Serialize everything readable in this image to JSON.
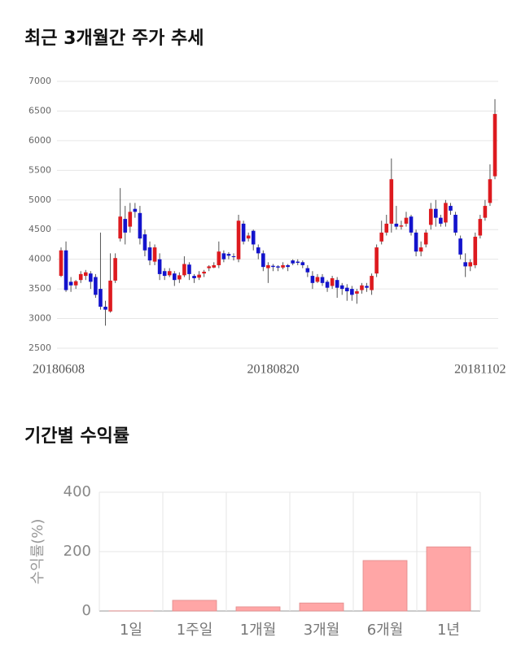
{
  "chart_data": [
    {
      "type": "candlestick",
      "title": "최근 3개월간 주가 추세",
      "categories": [
        "20180608",
        null,
        null,
        null,
        null,
        null,
        null,
        null,
        null,
        null,
        null,
        null,
        null,
        null,
        null,
        null,
        null,
        null,
        null,
        null,
        null,
        null,
        null,
        null,
        null,
        null,
        null,
        null,
        null,
        null,
        null,
        null,
        null,
        null,
        null,
        null,
        null,
        null,
        null,
        null,
        null,
        null,
        null,
        "20180820",
        null,
        null,
        null,
        null,
        null,
        null,
        null,
        null,
        null,
        null,
        null,
        null,
        null,
        null,
        null,
        null,
        null,
        null,
        null,
        null,
        null,
        null,
        null,
        null,
        null,
        null,
        null,
        null,
        null,
        null,
        null,
        null,
        null,
        null,
        null,
        null,
        null,
        null,
        null,
        null,
        null,
        "20181102",
        null,
        null,
        null
      ],
      "open": [
        3720,
        4150,
        3620,
        3560,
        3650,
        3720,
        3760,
        3700,
        3500,
        3200,
        3120,
        3640,
        4350,
        4680,
        4550,
        4850,
        4780,
        4420,
        4200,
        3960,
        4000,
        3800,
        3730,
        3760,
        3660,
        3730,
        3910,
        3720,
        3690,
        3760,
        3850,
        3860,
        3900,
        4100,
        4090,
        4050,
        4000,
        4600,
        4350,
        4480,
        4200,
        4100,
        3850,
        3890,
        3880,
        3860,
        3900,
        3980,
        3960,
        3950,
        3850,
        3720,
        3620,
        3700,
        3620,
        3550,
        3650,
        3560,
        3520,
        3500,
        3420,
        3480,
        3550,
        3480,
        3760,
        4300,
        4450,
        4600,
        4600,
        4550,
        4600,
        4720,
        4450,
        4130,
        4250,
        4580,
        4850,
        4700,
        4620,
        4900,
        4750,
        4350,
        3950,
        3880,
        3900,
        4400,
        4700,
        4950,
        5400
      ],
      "high": [
        4200,
        4300,
        3700,
        3650,
        3800,
        3820,
        3800,
        3750,
        4450,
        3300,
        4100,
        4100,
        5200,
        4900,
        4950,
        4950,
        4900,
        4500,
        4300,
        4250,
        4100,
        3850,
        3850,
        3800,
        3780,
        4050,
        3950,
        3750,
        3800,
        3820,
        3900,
        3950,
        4300,
        4150,
        4120,
        4100,
        4750,
        4650,
        4450,
        4500,
        4250,
        4150,
        3950,
        3920,
        3900,
        3950,
        3920,
        4000,
        4000,
        3980,
        3900,
        3800,
        3750,
        3750,
        3650,
        3720,
        3700,
        3600,
        3580,
        3550,
        3500,
        3600,
        3600,
        3760,
        4250,
        4650,
        4750,
        5700,
        4900,
        4650,
        4800,
        4750,
        4500,
        4300,
        4500,
        4950,
        5000,
        4750,
        5000,
        4950,
        4800,
        4400,
        4100,
        4000,
        4450,
        4750,
        5000,
        5600,
        6700
      ],
      "low": [
        3700,
        3450,
        3450,
        3500,
        3600,
        3650,
        3500,
        3350,
        3150,
        2880,
        3100,
        3600,
        4300,
        4250,
        4450,
        4700,
        4250,
        4050,
        3900,
        3900,
        3650,
        3650,
        3700,
        3550,
        3600,
        3700,
        3650,
        3600,
        3650,
        3700,
        3800,
        3850,
        3850,
        3950,
        4000,
        3980,
        3950,
        4250,
        4300,
        4150,
        4000,
        3800,
        3600,
        3800,
        3800,
        3830,
        3800,
        3900,
        3900,
        3850,
        3700,
        3500,
        3600,
        3550,
        3450,
        3500,
        3350,
        3400,
        3300,
        3300,
        3250,
        3420,
        3450,
        3400,
        3700,
        4250,
        4400,
        4450,
        4500,
        4500,
        4550,
        4400,
        4050,
        4050,
        4200,
        4500,
        4550,
        4550,
        4550,
        4750,
        4400,
        4000,
        3700,
        3800,
        3850,
        4350,
        4650,
        4900,
        5350
      ],
      "close": [
        4150,
        3480,
        3560,
        3630,
        3750,
        3780,
        3620,
        3400,
        3200,
        3150,
        3640,
        4020,
        4720,
        4450,
        4800,
        4800,
        4350,
        4150,
        3980,
        4200,
        3750,
        3720,
        3800,
        3650,
        3730,
        3920,
        3750,
        3680,
        3740,
        3790,
        3880,
        3900,
        4130,
        4000,
        4060,
        4040,
        4650,
        4300,
        4400,
        4250,
        4100,
        3870,
        3900,
        3870,
        3860,
        3900,
        3870,
        3930,
        3940,
        3900,
        3780,
        3600,
        3700,
        3600,
        3520,
        3680,
        3520,
        3500,
        3460,
        3400,
        3460,
        3560,
        3520,
        3720,
        4200,
        4450,
        4600,
        5350,
        4550,
        4570,
        4700,
        4450,
        4130,
        4200,
        4450,
        4850,
        4700,
        4600,
        4950,
        4820,
        4450,
        4080,
        3880,
        3950,
        4380,
        4680,
        4900,
        5350,
        6450
      ],
      "up_color": "#dd1a1f",
      "down_color": "#1313cc",
      "ylim": [
        2500,
        7000
      ],
      "yticks": [
        2500,
        3000,
        3500,
        4000,
        4500,
        5000,
        5500,
        6000,
        6500,
        7000
      ],
      "grid": true
    },
    {
      "type": "bar",
      "title": "기간별 수익률",
      "y_label": "수익률(%)",
      "categories": [
        "1일",
        "1주일",
        "1개월",
        "3개월",
        "6개월",
        "1년"
      ],
      "values": [
        0.5,
        36,
        14,
        27,
        170,
        216
      ],
      "color": "#ffa6a6",
      "ylim": [
        0,
        400
      ],
      "yticks": [
        0,
        200,
        400
      ],
      "grid": true
    }
  ]
}
